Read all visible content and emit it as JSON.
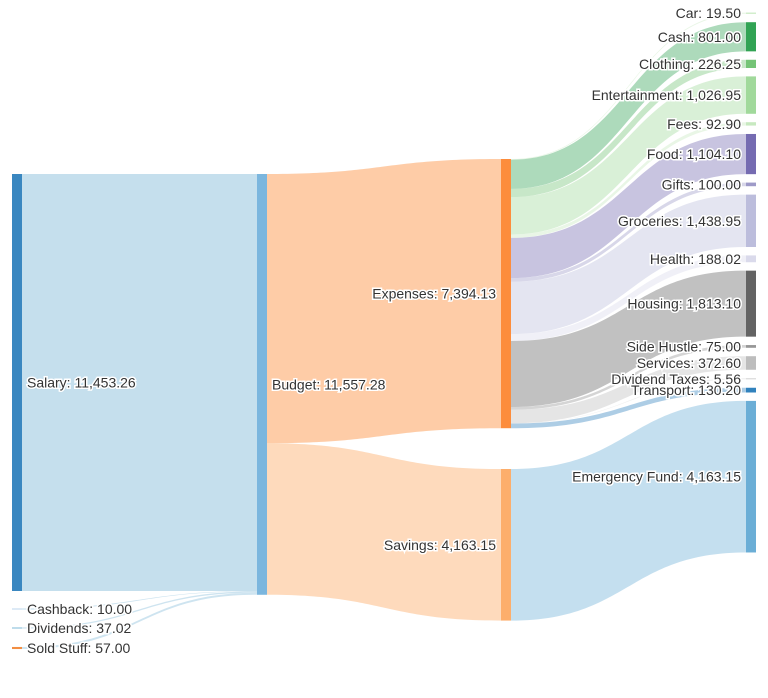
{
  "chart_data": {
    "type": "sankey",
    "nodes": [
      {
        "id": "salary",
        "label": "Salary: 11,453.26",
        "value": 11453.26,
        "color": "#3a87c0"
      },
      {
        "id": "cashback",
        "label": "Cashback: 10.00",
        "value": 10.0,
        "color": "#c6dcef"
      },
      {
        "id": "dividends",
        "label": "Dividends: 37.02",
        "value": 37.02,
        "color": "#9ecae1"
      },
      {
        "id": "sold",
        "label": "Sold Stuff: 57.00",
        "value": 57.0,
        "color": "#f28e43"
      },
      {
        "id": "budget",
        "label": "Budget: 11,557.28",
        "value": 11557.28,
        "color": "#7bb6de"
      },
      {
        "id": "expenses",
        "label": "Expenses: 7,394.13",
        "value": 7394.13,
        "color": "#fd8d3c"
      },
      {
        "id": "savings",
        "label": "Savings: 4,163.15",
        "value": 4163.15,
        "color": "#fdae6b"
      },
      {
        "id": "car",
        "label": "Car: 19.50",
        "value": 19.5,
        "color": "#c7e9c0"
      },
      {
        "id": "cash",
        "label": "Cash: 801.00",
        "value": 801.0,
        "color": "#31a354"
      },
      {
        "id": "clothing",
        "label": "Clothing: 226.25",
        "value": 226.25,
        "color": "#74c476"
      },
      {
        "id": "entertainment",
        "label": "Entertainment: 1,026.95",
        "value": 1026.95,
        "color": "#a1d99b"
      },
      {
        "id": "fees",
        "label": "Fees: 92.90",
        "value": 92.9,
        "color": "#c7e9c0"
      },
      {
        "id": "food",
        "label": "Food: 1,104.10",
        "value": 1104.1,
        "color": "#756bb1"
      },
      {
        "id": "gifts",
        "label": "Gifts: 100.00",
        "value": 100.0,
        "color": "#9e9ac8"
      },
      {
        "id": "groceries",
        "label": "Groceries: 1,438.95",
        "value": 1438.95,
        "color": "#bcbddc"
      },
      {
        "id": "health",
        "label": "Health: 188.02",
        "value": 188.02,
        "color": "#dadaeb"
      },
      {
        "id": "housing",
        "label": "Housing: 1,813.10",
        "value": 1813.1,
        "color": "#636363"
      },
      {
        "id": "sidehustle",
        "label": "Side Hustle: 75.00",
        "value": 75.0,
        "color": "#969696"
      },
      {
        "id": "services",
        "label": "Services: 372.60",
        "value": 372.6,
        "color": "#bdbdbd"
      },
      {
        "id": "divtaxes",
        "label": "Dividend Taxes: 5.56",
        "value": 5.56,
        "color": "#d9d9d9"
      },
      {
        "id": "transport",
        "label": "Transport: 130.20",
        "value": 130.2,
        "color": "#3182bd"
      },
      {
        "id": "emergency",
        "label": "Emergency Fund: 4,163.15",
        "value": 4163.15,
        "color": "#6baed6"
      }
    ],
    "links": [
      {
        "source": "salary",
        "target": "budget",
        "value": 11453.26
      },
      {
        "source": "cashback",
        "target": "budget",
        "value": 10.0
      },
      {
        "source": "dividends",
        "target": "budget",
        "value": 37.02
      },
      {
        "source": "sold",
        "target": "budget",
        "value": 57.0
      },
      {
        "source": "budget",
        "target": "expenses",
        "value": 7394.13
      },
      {
        "source": "budget",
        "target": "savings",
        "value": 4163.15
      },
      {
        "source": "expenses",
        "target": "car",
        "value": 19.5
      },
      {
        "source": "expenses",
        "target": "cash",
        "value": 801.0
      },
      {
        "source": "expenses",
        "target": "clothing",
        "value": 226.25
      },
      {
        "source": "expenses",
        "target": "entertainment",
        "value": 1026.95
      },
      {
        "source": "expenses",
        "target": "fees",
        "value": 92.9
      },
      {
        "source": "expenses",
        "target": "food",
        "value": 1104.1
      },
      {
        "source": "expenses",
        "target": "gifts",
        "value": 100.0
      },
      {
        "source": "expenses",
        "target": "groceries",
        "value": 1438.95
      },
      {
        "source": "expenses",
        "target": "health",
        "value": 188.02
      },
      {
        "source": "expenses",
        "target": "housing",
        "value": 1813.1
      },
      {
        "source": "expenses",
        "target": "sidehustle",
        "value": 75.0
      },
      {
        "source": "expenses",
        "target": "services",
        "value": 372.6
      },
      {
        "source": "expenses",
        "target": "divtaxes",
        "value": 5.56
      },
      {
        "source": "expenses",
        "target": "transport",
        "value": 130.2
      },
      {
        "source": "savings",
        "target": "emergency",
        "value": 4163.15
      }
    ]
  }
}
